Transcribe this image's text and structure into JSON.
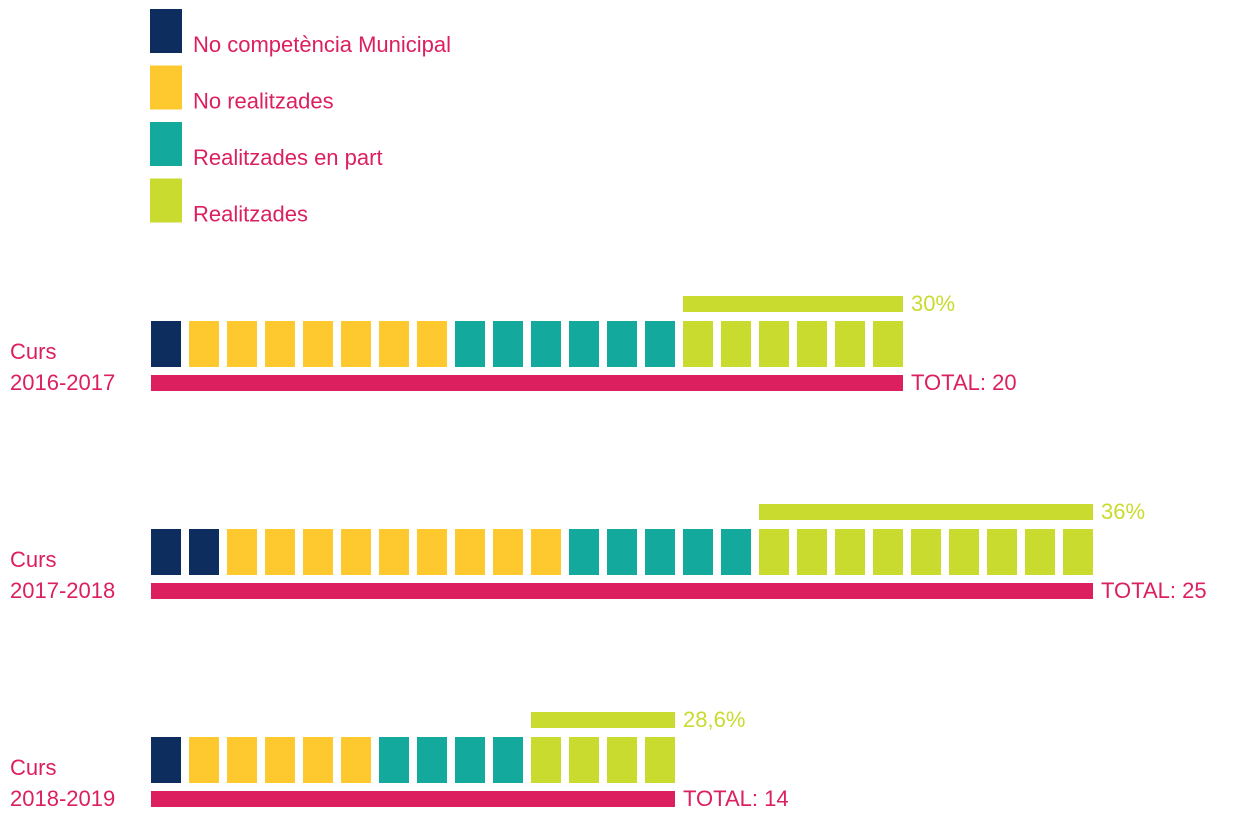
{
  "chart_data": {
    "type": "waffle",
    "series": [
      {
        "name": "No competència Municipal",
        "color": "#0c2d5e",
        "values": [
          1,
          2,
          1
        ]
      },
      {
        "name": "No realitzades",
        "color": "#fdc92f",
        "values": [
          7,
          9,
          5
        ]
      },
      {
        "name": "Realitzades en part",
        "color": "#14a99d",
        "values": [
          6,
          5,
          4
        ]
      },
      {
        "name": "Realitzades",
        "color": "#c9db2e",
        "values": [
          6,
          9,
          4
        ]
      }
    ],
    "categories": [
      [
        "Curs",
        "2016-2017"
      ],
      [
        "Curs",
        "2017-2018"
      ],
      [
        "Curs",
        "2018-2019"
      ]
    ],
    "percent": [
      30,
      36,
      28.6
    ],
    "percent_labels": [
      "30%",
      "36%",
      "28,6%"
    ],
    "total": [
      20,
      25,
      14
    ],
    "total_labels": [
      "TOTAL: 20",
      "TOTAL: 25",
      "TOTAL: 14"
    ],
    "total_color": "#dc1f5e",
    "percent_color": "#c9db2e",
    "text_color": "#dc1f5e"
  }
}
